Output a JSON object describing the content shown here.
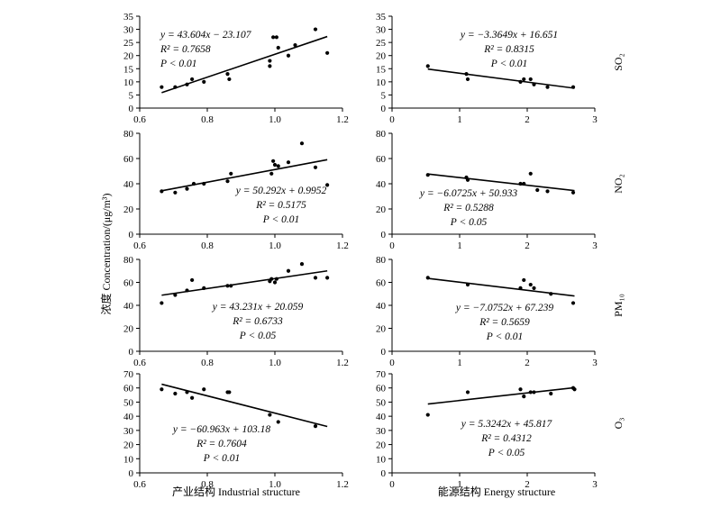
{
  "figure": {
    "ylabel": "浓度 Concentration/(μg/m³)",
    "xlabel_left": "产业结构 Industrial structure",
    "xlabel_right": "能源结构 Energy structure"
  },
  "chart_data": [
    {
      "id": "so2-industrial",
      "type": "scatter",
      "row": 0,
      "col": 0,
      "pollutant": "",
      "xlim": [
        0.6,
        1.2
      ],
      "xticks": [
        "0.6",
        "0.8",
        "1.0",
        "1.2"
      ],
      "ylim": [
        0,
        35
      ],
      "yticks": [
        "0",
        "5",
        "10",
        "15",
        "20",
        "25",
        "30",
        "35"
      ],
      "x": [
        0.665,
        0.705,
        0.74,
        0.755,
        0.79,
        0.86,
        0.865,
        0.985,
        0.985,
        0.995,
        1.005,
        1.01,
        1.04,
        1.06,
        1.12,
        1.155
      ],
      "y": [
        8,
        8,
        9,
        11,
        10,
        13,
        11,
        16,
        18,
        27,
        27,
        23,
        20,
        24,
        30,
        21
      ],
      "fit": {
        "slope": 43.604,
        "intercept": -23.107,
        "x": [
          0.665,
          1.155
        ]
      },
      "eq": {
        "line1": "y = 43.604x − 23.107",
        "line2": "R² = 0.7658",
        "line3": "P < 0.01"
      }
    },
    {
      "id": "so2-energy",
      "type": "scatter",
      "row": 0,
      "col": 1,
      "pollutant": "SO₂",
      "xlim": [
        0,
        3
      ],
      "xticks": [
        "0",
        "1",
        "2",
        "3"
      ],
      "ylim": [
        0,
        35
      ],
      "yticks": [
        "0",
        "5",
        "10",
        "15",
        "20",
        "25",
        "30",
        "35"
      ],
      "x": [
        0.53,
        1.1,
        1.12,
        1.9,
        1.95,
        2.05,
        2.1,
        2.3,
        2.68
      ],
      "y": [
        16,
        13,
        11,
        10,
        11,
        11,
        9,
        8,
        8
      ],
      "fit": {
        "slope": -3.3649,
        "intercept": 16.651,
        "x": [
          0.53,
          2.7
        ]
      },
      "eq": {
        "line1": "y = −3.3649x + 16.651",
        "line2": "R² = 0.8315",
        "line3": "P < 0.01"
      }
    },
    {
      "id": "no2-industrial",
      "type": "scatter",
      "row": 1,
      "col": 0,
      "pollutant": "",
      "xlim": [
        0.6,
        1.2
      ],
      "xticks": [
        "0.6",
        "0.8",
        "1.0",
        "1.2"
      ],
      "ylim": [
        0,
        80
      ],
      "yticks": [
        "0",
        "20",
        "40",
        "60",
        "80"
      ],
      "x": [
        0.665,
        0.705,
        0.74,
        0.76,
        0.79,
        0.86,
        0.87,
        0.99,
        0.995,
        1.0,
        1.01,
        1.04,
        1.08,
        1.12,
        1.155
      ],
      "y": [
        34,
        33,
        36,
        40,
        40,
        42,
        48,
        48,
        58,
        55,
        54,
        57,
        72,
        53,
        39
      ],
      "fit": {
        "slope": 50.292,
        "intercept": 0.9952,
        "x": [
          0.665,
          1.155
        ]
      },
      "eq": {
        "line1": "y = 50.292x + 0.9952",
        "line2": "R² = 0.5175",
        "line3": "P < 0.01"
      }
    },
    {
      "id": "no2-energy",
      "type": "scatter",
      "row": 1,
      "col": 1,
      "pollutant": "NO₂",
      "xlim": [
        0,
        3
      ],
      "xticks": [
        "0",
        "1",
        "2",
        "3"
      ],
      "ylim": [
        0,
        80
      ],
      "yticks": [
        "0",
        "20",
        "40",
        "60",
        "80"
      ],
      "x": [
        0.53,
        1.1,
        1.12,
        1.9,
        1.95,
        2.05,
        2.15,
        2.3,
        2.68
      ],
      "y": [
        47,
        45,
        43,
        40,
        40,
        48,
        35,
        34,
        33
      ],
      "fit": {
        "slope": -6.0725,
        "intercept": 50.933,
        "x": [
          0.53,
          2.7
        ]
      },
      "eq": {
        "line1": "y = −6.0725x + 50.933",
        "line2": "R² = 0.5288",
        "line3": "P < 0.05"
      }
    },
    {
      "id": "pm10-industrial",
      "type": "scatter",
      "row": 2,
      "col": 0,
      "pollutant": "",
      "xlim": [
        0.6,
        1.2
      ],
      "xticks": [
        "0.6",
        "0.8",
        "1.0",
        "1.2"
      ],
      "ylim": [
        0,
        80
      ],
      "yticks": [
        "0",
        "20",
        "40",
        "60",
        "80"
      ],
      "x": [
        0.665,
        0.705,
        0.74,
        0.755,
        0.79,
        0.86,
        0.87,
        0.985,
        0.99,
        1.0,
        1.005,
        1.04,
        1.08,
        1.12,
        1.155
      ],
      "y": [
        42,
        49,
        53,
        62,
        55,
        57,
        57,
        61,
        63,
        60,
        63,
        70,
        76,
        64,
        64
      ],
      "fit": {
        "slope": 43.231,
        "intercept": 20.059,
        "x": [
          0.665,
          1.155
        ]
      },
      "eq": {
        "line1": "y = 43.231x + 20.059",
        "line2": "R² = 0.6733",
        "line3": "P < 0.05"
      }
    },
    {
      "id": "pm10-energy",
      "type": "scatter",
      "row": 2,
      "col": 1,
      "pollutant": "PM₁₀",
      "xlim": [
        0,
        3
      ],
      "xticks": [
        "0",
        "1",
        "2",
        "3"
      ],
      "ylim": [
        0,
        80
      ],
      "yticks": [
        "0",
        "20",
        "40",
        "60",
        "80"
      ],
      "x": [
        0.53,
        1.12,
        1.9,
        1.95,
        2.05,
        2.1,
        2.35,
        2.68
      ],
      "y": [
        64,
        58,
        55,
        62,
        58,
        55,
        50,
        42
      ],
      "fit": {
        "slope": -7.0752,
        "intercept": 67.239,
        "x": [
          0.53,
          2.7
        ]
      },
      "eq": {
        "line1": "y = −7.0752x + 67.239",
        "line2": "R² = 0.5659",
        "line3": "P < 0.01"
      }
    },
    {
      "id": "o3-industrial",
      "type": "scatter",
      "row": 3,
      "col": 0,
      "pollutant": "",
      "xlim": [
        0.6,
        1.2
      ],
      "xticks": [
        "0.6",
        "0.8",
        "1.0",
        "1.2"
      ],
      "ylim": [
        0,
        70
      ],
      "yticks": [
        "0",
        "10",
        "20",
        "30",
        "40",
        "50",
        "60",
        "70"
      ],
      "x": [
        0.665,
        0.705,
        0.74,
        0.755,
        0.79,
        0.86,
        0.865,
        0.985,
        1.01,
        1.12
      ],
      "y": [
        59,
        56,
        57,
        53,
        59,
        57,
        57,
        41,
        36,
        33
      ],
      "fit": {
        "slope": -60.963,
        "intercept": 103.18,
        "x": [
          0.665,
          1.155
        ]
      },
      "eq": {
        "line1": "y = −60.963x + 103.18",
        "line2": "R² = 0.7604",
        "line3": "P < 0.01"
      }
    },
    {
      "id": "o3-energy",
      "type": "scatter",
      "row": 3,
      "col": 1,
      "pollutant": "O₃",
      "xlim": [
        0,
        3
      ],
      "xticks": [
        "0",
        "1",
        "2",
        "3"
      ],
      "ylim": [
        0,
        70
      ],
      "yticks": [
        "0",
        "10",
        "20",
        "30",
        "40",
        "50",
        "60",
        "70"
      ],
      "x": [
        0.53,
        1.12,
        1.9,
        1.95,
        2.05,
        2.1,
        2.35,
        2.68,
        2.7
      ],
      "y": [
        41,
        57,
        59,
        54,
        57,
        57,
        56,
        60,
        59
      ],
      "fit": {
        "slope": 5.3242,
        "intercept": 45.817,
        "x": [
          0.53,
          2.7
        ]
      },
      "eq": {
        "line1": "y = 5.3242x + 45.817",
        "line2": "R² = 0.4312",
        "line3": "P < 0.05"
      }
    }
  ]
}
